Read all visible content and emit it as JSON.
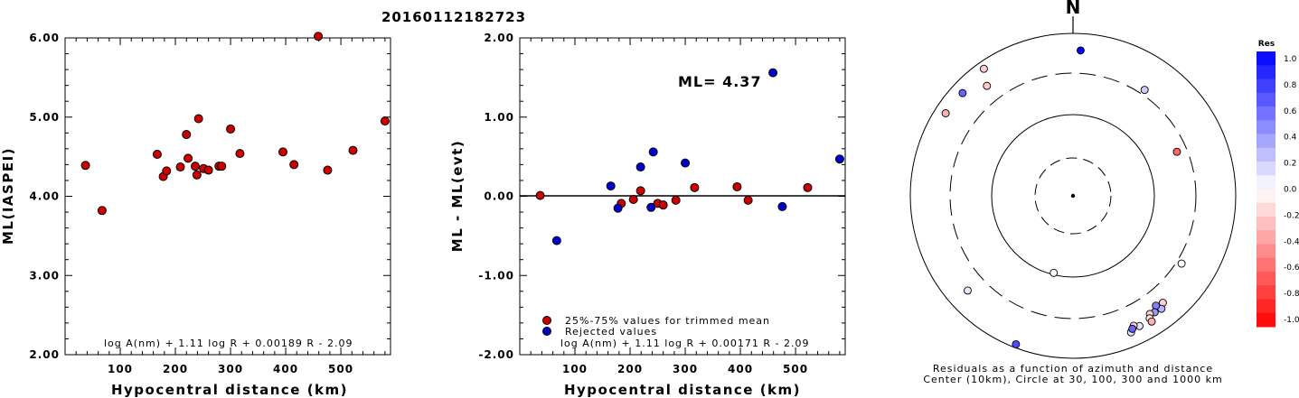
{
  "title": "20160112182723",
  "panels": {
    "left": {
      "ylabel": "ML(IASPEI)",
      "xlabel": "Hypocentral distance (km)",
      "formula": "log A(nm) + 1.11 log R + 0.00189 R - 2.09",
      "yticks": [
        "6.00",
        "5.00",
        "4.00",
        "3.00",
        "2.00"
      ],
      "xticks": [
        "100",
        "200",
        "300",
        "400",
        "500"
      ]
    },
    "middle": {
      "ylabel": "ML - ML(evt)",
      "xlabel": "Hypocentral distance (km)",
      "ml_text": "ML= 4.37",
      "formula": "log A(nm) + 1.11 log R + 0.00171 R - 2.09",
      "legend_trimmed": "25%-75% values for trimmed mean",
      "legend_rejected": "Rejected values",
      "yticks": [
        "2.00",
        "1.00",
        "0.00",
        "-1.00",
        "-2.00"
      ],
      "xticks": [
        "100",
        "200",
        "300",
        "400",
        "500"
      ]
    },
    "right": {
      "north": "N",
      "caption1": "Residuals as a function of azimuth and distance",
      "caption2": "Center (10km), Circle at 30, 100, 300 and 1000 km"
    },
    "colorbar": {
      "title": "Res",
      "labels": [
        "1.0",
        "0.8",
        "0.6",
        "0.4",
        "0.2",
        "0.0",
        "-0.2",
        "-0.4",
        "-0.6",
        "-0.8",
        "-1.0"
      ]
    }
  },
  "colors": {
    "trimmed": "#cc0000",
    "rejected": "#0000cc",
    "dash": "#000000"
  },
  "chart_data": [
    {
      "type": "scatter",
      "ylabel": "ML(IASPEI)",
      "xlabel": "Hypocentral distance (km)",
      "xlim": [
        0,
        590
      ],
      "ylim": [
        2.0,
        6.0
      ],
      "series": [
        {
          "points": [
            [
              37,
              4.39
            ],
            [
              67,
              3.82
            ],
            [
              167,
              4.53
            ],
            [
              178,
              4.25
            ],
            [
              184,
              4.32
            ],
            [
              209,
              4.37
            ],
            [
              220,
              4.78
            ],
            [
              223,
              4.48
            ],
            [
              236,
              4.38
            ],
            [
              239,
              4.27
            ],
            [
              242,
              4.98
            ],
            [
              251,
              4.35
            ],
            [
              260,
              4.33
            ],
            [
              279,
              4.38
            ],
            [
              284,
              4.38
            ],
            [
              300,
              4.85
            ],
            [
              317,
              4.54
            ],
            [
              395,
              4.56
            ],
            [
              415,
              4.4
            ],
            [
              476,
              4.33
            ],
            [
              522,
              4.58
            ],
            [
              580,
              4.95
            ],
            [
              459,
              6.02
            ]
          ]
        }
      ]
    },
    {
      "type": "scatter",
      "ylabel": "ML - ML(evt)",
      "xlabel": "Hypocentral distance (km)",
      "xlim": [
        0,
        590
      ],
      "ylim": [
        -2.0,
        2.0
      ],
      "series": [
        {
          "name": "25%-75% values for trimmed mean",
          "points": [
            [
              37,
              0.01
            ],
            [
              184,
              -0.09
            ],
            [
              206,
              -0.04
            ],
            [
              219,
              0.07
            ],
            [
              250,
              -0.09
            ],
            [
              260,
              -0.11
            ],
            [
              283,
              -0.05
            ],
            [
              317,
              0.11
            ],
            [
              394,
              0.12
            ],
            [
              414,
              -0.05
            ],
            [
              522,
              0.11
            ]
          ]
        },
        {
          "name": "Rejected values",
          "points": [
            [
              67,
              -0.56
            ],
            [
              165,
              0.13
            ],
            [
              178,
              -0.15
            ],
            [
              219,
              0.37
            ],
            [
              238,
              -0.14
            ],
            [
              242,
              0.56
            ],
            [
              300,
              0.42
            ],
            [
              459,
              1.56
            ],
            [
              476,
              -0.13
            ],
            [
              580,
              0.47
            ]
          ]
        }
      ]
    },
    {
      "type": "scatter",
      "title": "Residuals as a function of azimuth and distance",
      "rings_km": [
        30,
        100,
        300,
        1000
      ],
      "center_km": 10,
      "points": [
        {
          "az": 3,
          "dist": 600,
          "res": 1.0
        },
        {
          "az": 34,
          "dist": 350,
          "res": 0.2
        },
        {
          "az": 67,
          "dist": 230,
          "res": -0.6
        },
        {
          "az": 325,
          "dist": 800,
          "res": -0.2
        },
        {
          "az": 313,
          "dist": 700,
          "res": 0.6
        },
        {
          "az": 322,
          "dist": 500,
          "res": -0.2
        },
        {
          "az": 303,
          "dist": 720,
          "res": -0.3
        },
        {
          "az": 194,
          "dist": 95,
          "res": 0.0
        },
        {
          "az": 122,
          "dist": 350,
          "res": 0.0
        },
        {
          "az": 140,
          "dist": 500,
          "res": -0.2
        },
        {
          "az": 142,
          "dist": 560,
          "res": 0.3
        },
        {
          "az": 143,
          "dist": 470,
          "res": 0.5
        },
        {
          "az": 145,
          "dist": 540,
          "res": 0.4
        },
        {
          "az": 147,
          "dist": 520,
          "res": -0.2
        },
        {
          "az": 148,
          "dist": 580,
          "res": -0.1
        },
        {
          "az": 153,
          "dist": 610,
          "res": 0.1
        },
        {
          "az": 148,
          "dist": 650,
          "res": -0.3
        },
        {
          "az": 155,
          "dist": 560,
          "res": -0.2
        },
        {
          "az": 157,
          "dist": 650,
          "res": 0.1
        },
        {
          "az": 156,
          "dist": 600,
          "res": 0.6
        },
        {
          "az": 228,
          "dist": 530,
          "res": 0.1
        },
        {
          "az": 201,
          "dist": 900,
          "res": 0.7
        }
      ]
    }
  ]
}
